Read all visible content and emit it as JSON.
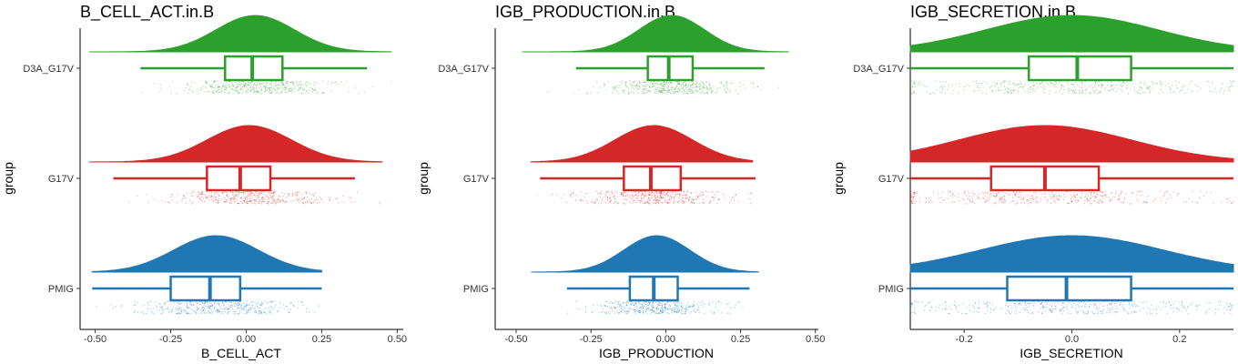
{
  "chart_data": [
    {
      "type": "raincloud",
      "title": "B_CELL_ACT.in.B",
      "xlabel": "B_CELL_ACT",
      "ylabel": "group",
      "xlim": [
        -0.55,
        0.52
      ],
      "xticks": [
        -0.5,
        -0.25,
        0.0,
        0.25,
        0.5
      ],
      "xtick_labels": [
        "-0.50",
        "-0.25",
        "0.00",
        "0.25",
        "0.50"
      ],
      "groups": [
        {
          "name": "D3A_G17V",
          "color": "#2ca02c",
          "min": -0.35,
          "q1": -0.07,
          "median": 0.02,
          "q3": 0.12,
          "max": 0.4,
          "density_range": [
            -0.52,
            0.48
          ],
          "peak": 0.03,
          "spread": 0.13
        },
        {
          "name": "G17V",
          "color": "#d62728",
          "min": -0.44,
          "q1": -0.13,
          "median": -0.02,
          "q3": 0.08,
          "max": 0.36,
          "density_range": [
            -0.52,
            0.45
          ],
          "peak": 0.01,
          "spread": 0.14
        },
        {
          "name": "PMIG",
          "color": "#1f77b4",
          "min": -0.51,
          "q1": -0.25,
          "median": -0.12,
          "q3": -0.02,
          "max": 0.25,
          "density_range": [
            -0.51,
            0.25
          ],
          "peak": -0.1,
          "spread": 0.14
        }
      ]
    },
    {
      "type": "raincloud",
      "title": "IGB_PRODUCTION.in.B",
      "xlabel": "IGB_PRODUCTION",
      "ylabel": "group",
      "xlim": [
        -0.57,
        0.51
      ],
      "xticks": [
        -0.5,
        -0.25,
        0.0,
        0.25,
        0.5
      ],
      "xtick_labels": [
        "-0.50",
        "-0.25",
        "0.00",
        "0.25",
        "0.50"
      ],
      "groups": [
        {
          "name": "D3A_G17V",
          "color": "#2ca02c",
          "min": -0.3,
          "q1": -0.06,
          "median": 0.01,
          "q3": 0.09,
          "max": 0.33,
          "density_range": [
            -0.48,
            0.41
          ],
          "peak": 0.02,
          "spread": 0.11
        },
        {
          "name": "G17V",
          "color": "#d62728",
          "min": -0.42,
          "q1": -0.14,
          "median": -0.05,
          "q3": 0.05,
          "max": 0.3,
          "density_range": [
            -0.45,
            0.29
          ],
          "peak": -0.04,
          "spread": 0.13
        },
        {
          "name": "PMIG",
          "color": "#1f77b4",
          "min": -0.33,
          "q1": -0.12,
          "median": -0.04,
          "q3": 0.04,
          "max": 0.28,
          "density_range": [
            -0.45,
            0.31
          ],
          "peak": -0.03,
          "spread": 0.11
        }
      ]
    },
    {
      "type": "raincloud",
      "title": "IGB_SECRETION.in.B",
      "xlabel": "IGB_SECRETION",
      "ylabel": "group",
      "xlim": [
        -0.3,
        0.3
      ],
      "xticks": [
        -0.2,
        0.0,
        0.2
      ],
      "xtick_labels": [
        "-0.2",
        "0.0",
        "0.2"
      ],
      "groups": [
        {
          "name": "D3A_G17V",
          "color": "#2ca02c",
          "min": -0.3,
          "q1": -0.08,
          "median": 0.01,
          "q3": 0.11,
          "max": 0.3,
          "density_range": [
            -0.3,
            0.3
          ],
          "peak": 0.0,
          "spread": 0.16
        },
        {
          "name": "G17V",
          "color": "#d62728",
          "min": -0.3,
          "q1": -0.15,
          "median": -0.05,
          "q3": 0.05,
          "max": 0.3,
          "density_range": [
            -0.3,
            0.3
          ],
          "peak": -0.05,
          "spread": 0.16
        },
        {
          "name": "PMIG",
          "color": "#1f77b4",
          "min": -0.3,
          "q1": -0.12,
          "median": -0.01,
          "q3": 0.11,
          "max": 0.3,
          "density_range": [
            -0.3,
            0.3
          ],
          "peak": 0.0,
          "spread": 0.17
        }
      ]
    }
  ]
}
